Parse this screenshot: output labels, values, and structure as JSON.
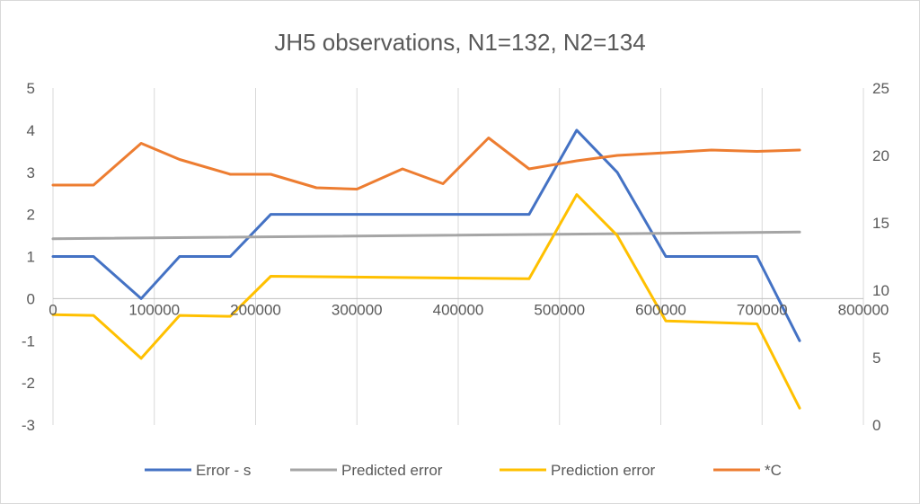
{
  "chart_data": {
    "type": "line",
    "title": "JH5 observations, N1=132, N2=134",
    "xlabel": "",
    "ylabel": "",
    "xlim": [
      0,
      800000
    ],
    "ylim": [
      -3,
      5
    ],
    "y2lim": [
      0,
      25
    ],
    "x_ticks": [
      "0",
      "100000",
      "200000",
      "300000",
      "400000",
      "500000",
      "600000",
      "700000",
      "800000"
    ],
    "y_ticks": [
      "-3",
      "-2",
      "-1",
      "0",
      "1",
      "2",
      "3",
      "4",
      "5"
    ],
    "y2_ticks": [
      "0",
      "5",
      "10",
      "15",
      "20",
      "25"
    ],
    "grid": "vertical",
    "legend_position": "bottom",
    "series": [
      {
        "name": "Error - s",
        "axis": "left",
        "color": "#4472c4",
        "x": [
          0,
          40000,
          87000,
          125000,
          175000,
          215000,
          260000,
          300000,
          345000,
          385000,
          430000,
          470000,
          517000,
          557000,
          605000,
          650000,
          695000,
          737000
        ],
        "y": [
          1,
          1,
          0,
          1,
          1,
          2,
          2,
          2,
          2,
          2,
          2,
          2,
          4,
          3,
          1,
          1,
          1,
          -1
        ]
      },
      {
        "name": "Predicted error",
        "axis": "left",
        "color": "#a5a5a5",
        "x": [
          0,
          737000
        ],
        "y": [
          1.42,
          1.58
        ]
      },
      {
        "name": "Prediction error",
        "axis": "left",
        "color": "#ffc000",
        "x": [
          0,
          40000,
          87000,
          125000,
          175000,
          215000,
          470000,
          517000,
          557000,
          605000,
          695000,
          737000
        ],
        "y": [
          -0.38,
          -0.4,
          -1.42,
          -0.4,
          -0.42,
          0.53,
          0.47,
          2.47,
          1.5,
          -0.53,
          -0.6,
          -2.6
        ]
      },
      {
        "name": "*C",
        "axis": "right",
        "color": "#ed7d31",
        "x": [
          0,
          40000,
          87000,
          125000,
          175000,
          215000,
          260000,
          300000,
          345000,
          385000,
          430000,
          470000,
          517000,
          557000,
          605000,
          650000,
          695000,
          737000
        ],
        "y": [
          17.8,
          17.8,
          20.9,
          19.7,
          18.6,
          18.6,
          17.6,
          17.5,
          19.0,
          17.9,
          21.3,
          19.0,
          19.6,
          20.0,
          20.2,
          20.4,
          20.3,
          20.4
        ]
      }
    ]
  }
}
